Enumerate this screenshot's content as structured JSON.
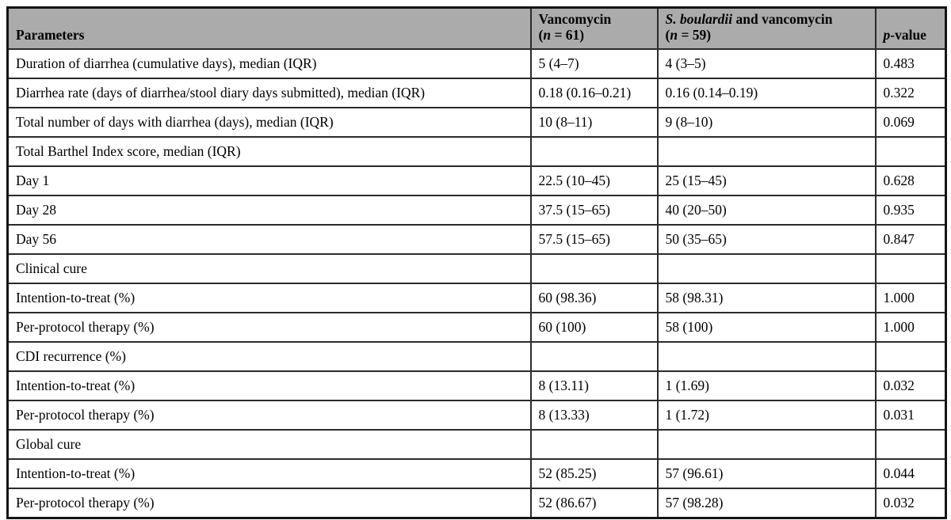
{
  "table": {
    "header": {
      "col1": "Parameters",
      "col2": {
        "line1": "Vancomycin",
        "n_pre": "(",
        "n_italic": "n",
        "n_post": " = 61)"
      },
      "col3": {
        "line1_italic": "S. boulardii",
        "line1_rest": " and vancomycin",
        "n_pre": "(",
        "n_italic": "n",
        "n_post": " = 59)"
      },
      "col4": {
        "p_italic": "p",
        "rest": "-value"
      }
    },
    "rows": [
      {
        "label": "Duration of diarrhea (cumulative days), median (IQR)",
        "vanco": "5 (4–7)",
        "combo": "4 (3–5)",
        "p": "0.483"
      },
      {
        "label": "Diarrhea rate (days of diarrhea/stool diary days submitted), median (IQR)",
        "vanco": "0.18 (0.16–0.21)",
        "combo": "0.16 (0.14–0.19)",
        "p": "0.322"
      },
      {
        "label": "Total number of days with diarrhea (days), median (IQR)",
        "vanco": "10 (8–11)",
        "combo": "9 (8–10)",
        "p": "0.069"
      },
      {
        "label": "Total Barthel Index score, median (IQR)",
        "vanco": "",
        "combo": "",
        "p": ""
      },
      {
        "label": "Day 1",
        "vanco": "22.5 (10–45)",
        "combo": "25 (15–45)",
        "p": "0.628"
      },
      {
        "label": "Day 28",
        "vanco": "37.5 (15–65)",
        "combo": "40 (20–50)",
        "p": "0.935"
      },
      {
        "label": "Day 56",
        "vanco": "57.5 (15–65)",
        "combo": "50 (35–65)",
        "p": "0.847"
      },
      {
        "label": "Clinical cure",
        "vanco": "",
        "combo": "",
        "p": ""
      },
      {
        "label": "Intention-to-treat (%)",
        "vanco": "60 (98.36)",
        "combo": "58 (98.31)",
        "p": "1.000"
      },
      {
        "label": "Per-protocol therapy (%)",
        "vanco": "60 (100)",
        "combo": "58 (100)",
        "p": "1.000"
      },
      {
        "label": "CDI recurrence (%)",
        "vanco": "",
        "combo": "",
        "p": ""
      },
      {
        "label": "Intention-to-treat (%)",
        "vanco": "8 (13.11)",
        "combo": "1 (1.69)",
        "p": "0.032"
      },
      {
        "label": "Per-protocol therapy (%)",
        "vanco": "8 (13.33)",
        "combo": "1 (1.72)",
        "p": "0.031"
      },
      {
        "label": "Global cure",
        "vanco": "",
        "combo": "",
        "p": ""
      },
      {
        "label": "Intention-to-treat (%)",
        "vanco": "52 (85.25)",
        "combo": "57 (96.61)",
        "p": "0.044"
      },
      {
        "label": "Per-protocol therapy (%)",
        "vanco": "52 (86.67)",
        "combo": "57 (98.28)",
        "p": "0.032"
      }
    ]
  }
}
